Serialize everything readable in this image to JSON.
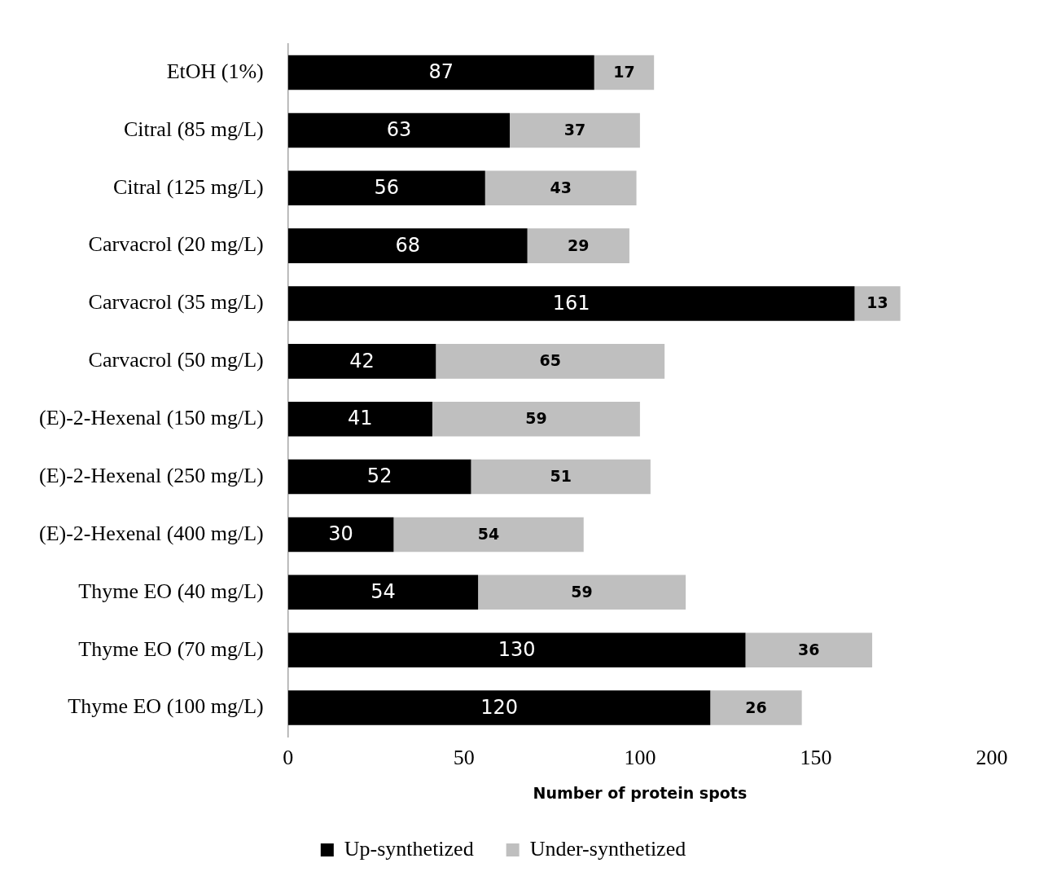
{
  "chart_data": {
    "type": "bar",
    "orientation": "horizontal",
    "stacked": true,
    "categories": [
      "EtOH (1%)",
      "Citral (85 mg/L)",
      "Citral (125 mg/L)",
      "Carvacrol (20 mg/L)",
      "Carvacrol (35 mg/L)",
      "Carvacrol (50 mg/L)",
      "(E)-2-Hexenal (150 mg/L)",
      "(E)-2-Hexenal (250 mg/L)",
      "(E)-2-Hexenal (400 mg/L)",
      "Thyme EO (40 mg/L)",
      "Thyme EO (70 mg/L)",
      "Thyme EO (100 mg/L)"
    ],
    "series": [
      {
        "name": "Up-synthetized",
        "color": "#000000",
        "values": [
          87,
          63,
          56,
          68,
          161,
          42,
          41,
          52,
          30,
          54,
          130,
          120
        ]
      },
      {
        "name": "Under-synthetized",
        "color": "#bfbfbf",
        "values": [
          17,
          37,
          43,
          29,
          13,
          65,
          59,
          51,
          54,
          59,
          36,
          26
        ]
      }
    ],
    "xlabel": "Number of protein spots",
    "xlim": [
      0,
      200
    ],
    "xticks": [
      0,
      50,
      100,
      150,
      200
    ],
    "grid": false,
    "legend": "bottom",
    "data_labels": true
  }
}
